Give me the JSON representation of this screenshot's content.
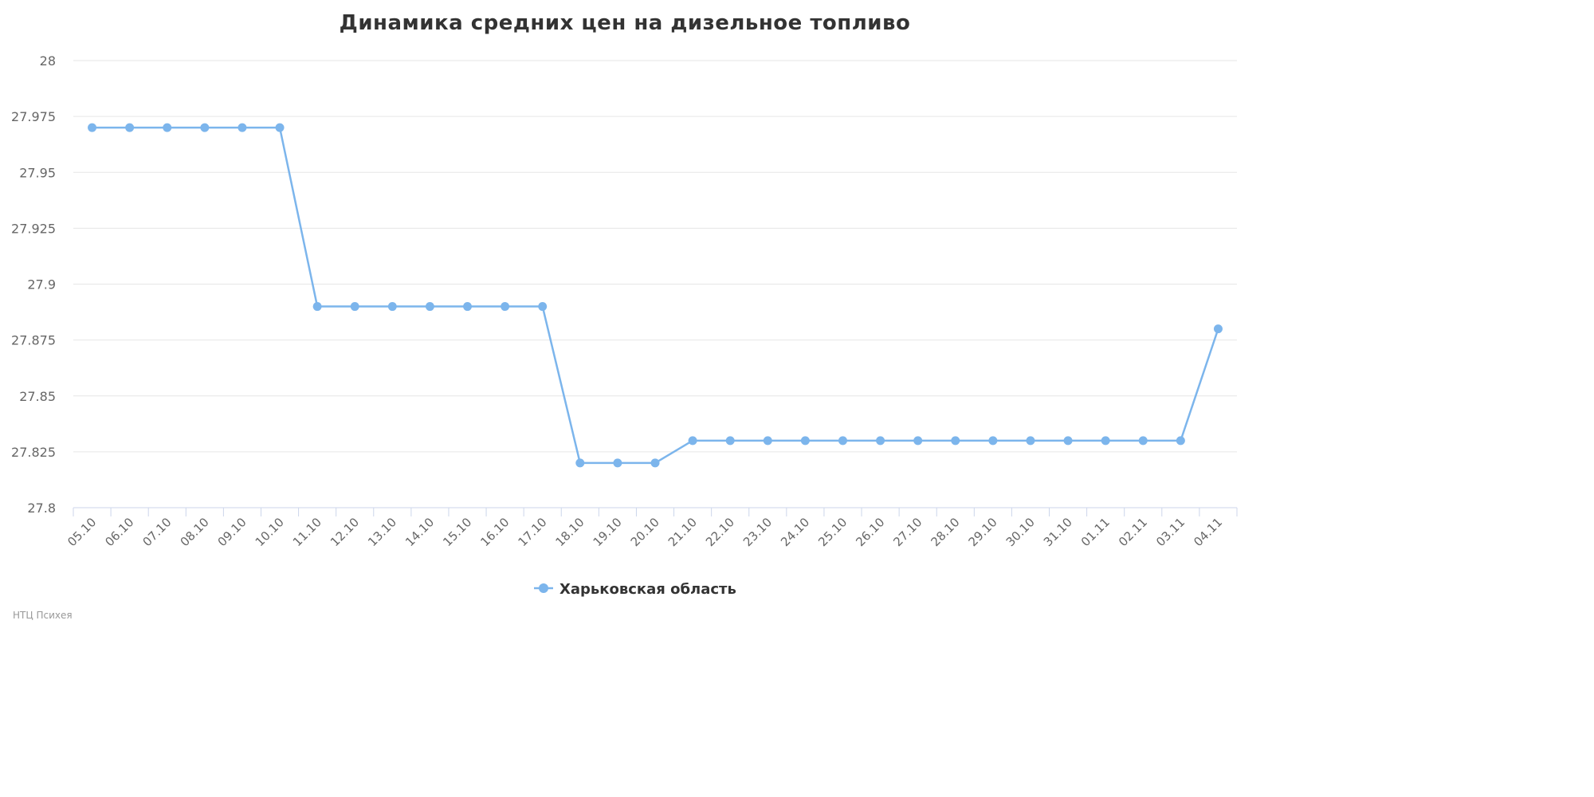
{
  "chart_data": {
    "type": "line",
    "title": "Динамика средних цен на дизельное топливо",
    "xlabel": "",
    "ylabel": "",
    "ylim": [
      27.8,
      28
    ],
    "y_ticks": [
      "27.8",
      "27.825",
      "27.85",
      "27.875",
      "27.9",
      "27.925",
      "27.95",
      "27.975",
      "28"
    ],
    "categories": [
      "05.10",
      "06.10",
      "07.10",
      "08.10",
      "09.10",
      "10.10",
      "11.10",
      "12.10",
      "13.10",
      "14.10",
      "15.10",
      "16.10",
      "17.10",
      "18.10",
      "19.10",
      "20.10",
      "21.10",
      "22.10",
      "23.10",
      "24.10",
      "25.10",
      "26.10",
      "27.10",
      "28.10",
      "29.10",
      "30.10",
      "31.10",
      "01.11",
      "02.11",
      "03.11",
      "04.11"
    ],
    "series": [
      {
        "name": "Харьковская область",
        "color": "#7cb5ec",
        "values": [
          27.97,
          27.97,
          27.97,
          27.97,
          27.97,
          27.97,
          27.89,
          27.89,
          27.89,
          27.89,
          27.89,
          27.89,
          27.89,
          27.82,
          27.82,
          27.82,
          27.83,
          27.83,
          27.83,
          27.83,
          27.83,
          27.83,
          27.83,
          27.83,
          27.83,
          27.83,
          27.83,
          27.83,
          27.83,
          27.83,
          27.88
        ]
      }
    ],
    "grid": true,
    "legend_position": "bottom-center"
  },
  "credits": "НТЦ Психея",
  "colors": {
    "series": "#7cb5ec",
    "grid": "#e6e6e6",
    "axis": "#ccd6eb",
    "text": "#333333",
    "tick_text": "#666666"
  }
}
